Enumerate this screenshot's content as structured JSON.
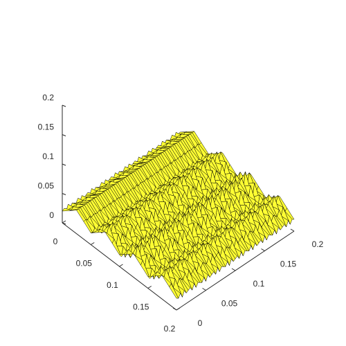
{
  "chart_data": {
    "type": "surface",
    "title": "",
    "xlabel": "",
    "ylabel": "",
    "zlabel": "",
    "grid": false,
    "face_color": "#ffff33",
    "edge_color": "#000000",
    "x_axis": {
      "range": [
        0,
        0.2
      ],
      "ticks": [
        0,
        0.05,
        0.1,
        0.15,
        0.2
      ],
      "tick_labels": [
        "0",
        "0.05",
        "0.1",
        "0.15",
        "0.2"
      ]
    },
    "y_axis": {
      "range": [
        0,
        0.2
      ],
      "ticks": [
        0,
        0.05,
        0.1,
        0.15,
        0.2
      ],
      "tick_labels": [
        "0",
        "0.05",
        "0.1",
        "0.15",
        "0.2"
      ]
    },
    "z_axis": {
      "range": [
        0,
        0.2
      ],
      "ticks": [
        0,
        0.05,
        0.1,
        0.15,
        0.2
      ],
      "tick_labels": [
        "0",
        "0.05",
        "0.1",
        "0.15",
        "0.2"
      ]
    },
    "surface": {
      "x_range": [
        0,
        0.2
      ],
      "y_range": [
        0,
        0.2
      ],
      "z_base": 0.02,
      "ridge_amplitude": 0.02,
      "ridge_count": 4,
      "ripple_amplitude": 0.012,
      "ripple_count": 25
    }
  }
}
